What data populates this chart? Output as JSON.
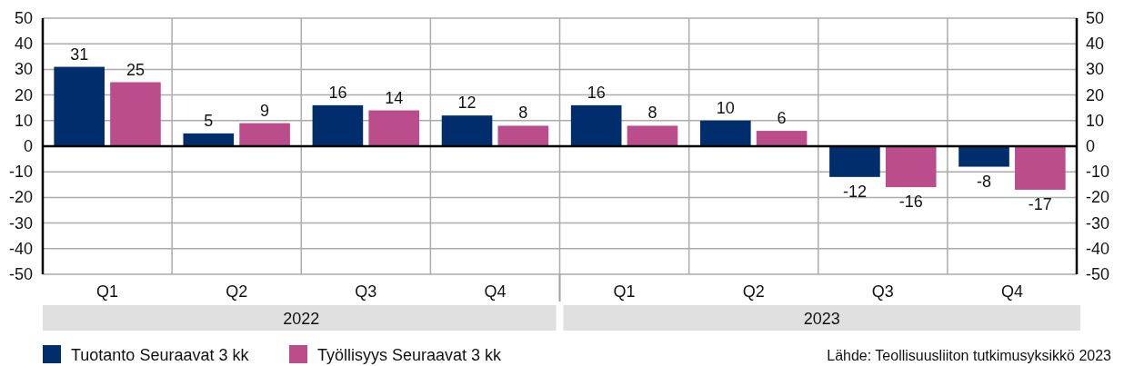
{
  "chart_data": {
    "type": "bar",
    "categories": [
      "Q1",
      "Q2",
      "Q3",
      "Q4",
      "Q1",
      "Q2",
      "Q3",
      "Q4"
    ],
    "series": [
      {
        "name": "Tuotanto Seuraavat 3 kk",
        "color": "#002d6b",
        "values": [
          31,
          5,
          16,
          12,
          16,
          10,
          -12,
          -8
        ]
      },
      {
        "name": "Työllisyys Seuraavat 3 kk",
        "color": "#bc4d8c",
        "values": [
          25,
          9,
          14,
          8,
          8,
          6,
          -16,
          -17
        ]
      }
    ],
    "ylim": [
      -50,
      50
    ],
    "yticks": [
      -50,
      -40,
      -30,
      -20,
      -10,
      0,
      10,
      20,
      30,
      40,
      50
    ],
    "y2lim": [
      -50,
      50
    ],
    "y2ticks": [
      -50,
      -40,
      -30,
      -20,
      -10,
      0,
      10,
      20,
      30,
      40,
      50
    ],
    "grid": true,
    "legend": "bottom left",
    "data_labels": true,
    "annotations": [
      "2022",
      "2023",
      "Lähde: Teollisuusliiton tutkimusyksikkö 2023"
    ]
  }
}
